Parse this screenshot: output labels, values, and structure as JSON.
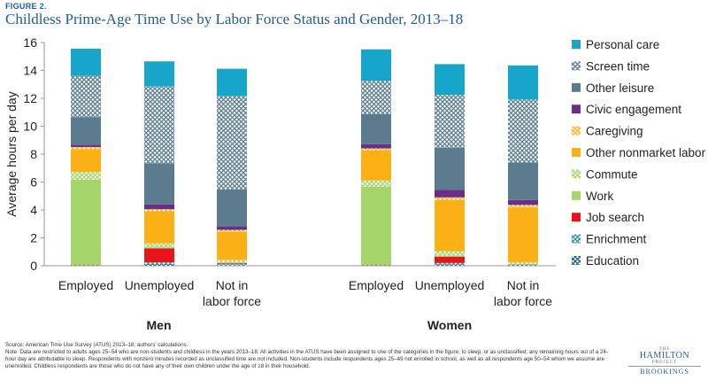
{
  "figure_label": "FIGURE 2.",
  "title": "Childless Prime-Age Time Use by Labor Force Status and Gender, 2013–18",
  "notes": {
    "source": "Source: American Time Use Survey (ATUS) 2013–18; authors’ calculations.",
    "note": "Note: Data are restricted to adults ages 25–54 who are non-students and childless in the years 2013–18. All activities in the ATUS have been assigned to one of the categories in the figure, to sleep, or as unclassified; any remaining hours out of a 24-hour day are attributable to sleep. Respondents with nonzero minutes recorded as unclassified time are not included. Non-students include respondents ages 25–49 not enrolled in school, as well as all respondents age 50–54 whom we assume are unenrolled. Childless respondents are those who do not have any of their own children under the age of 18 in their household."
  },
  "logo": {
    "the": "THE",
    "name": "HAMILTON",
    "project": "PROJECT",
    "org": "BROOKINGS"
  },
  "chart_data": {
    "type": "bar",
    "stacked": true,
    "ylabel": "Average hours per day",
    "ylim": [
      0,
      16
    ],
    "yticks": [
      0,
      2,
      4,
      6,
      8,
      10,
      12,
      14,
      16
    ],
    "grid": false,
    "legend_position": "right",
    "groups": [
      "Men",
      "Women"
    ],
    "categories": [
      "Employed",
      "Unemployed",
      "Not in labor force",
      "Employed",
      "Unemployed",
      "Not in labor force"
    ],
    "category_lines": [
      [
        "Employed"
      ],
      [
        "Unemployed"
      ],
      [
        "Not in",
        "labor force"
      ],
      [
        "Employed"
      ],
      [
        "Unemployed"
      ],
      [
        "Not in",
        "labor force"
      ]
    ],
    "series": [
      {
        "name": "Education",
        "color": "#1a5f7a",
        "pattern": "cross",
        "values": [
          0.02,
          0.15,
          0.05,
          0.02,
          0.1,
          0.02
        ]
      },
      {
        "name": "Enrichment",
        "color": "#2e8b9e",
        "pattern": "cross",
        "values": [
          0.02,
          0.1,
          0.1,
          0.02,
          0.1,
          0.05
        ]
      },
      {
        "name": "Job search",
        "color": "#e8141c",
        "pattern": "solid",
        "values": [
          0.02,
          1.0,
          0.05,
          0.02,
          0.45,
          0.02
        ]
      },
      {
        "name": "Work",
        "color": "#a5d46a",
        "pattern": "solid",
        "values": [
          6.1,
          0.05,
          0.02,
          5.6,
          0.05,
          0.02
        ]
      },
      {
        "name": "Commute",
        "color": "#a5d46a",
        "pattern": "cross",
        "values": [
          0.55,
          0.3,
          0.2,
          0.45,
          0.35,
          0.15
        ]
      },
      {
        "name": "Other nonmarket labor",
        "color": "#fbb116",
        "pattern": "solid",
        "values": [
          1.65,
          2.3,
          2.0,
          2.15,
          3.65,
          3.9
        ]
      },
      {
        "name": "Caregiving",
        "color": "#fbb116",
        "pattern": "cross",
        "values": [
          0.15,
          0.15,
          0.15,
          0.15,
          0.2,
          0.2
        ]
      },
      {
        "name": "Civic engagement",
        "color": "#6b2d87",
        "pattern": "solid",
        "values": [
          0.15,
          0.35,
          0.25,
          0.3,
          0.55,
          0.35
        ]
      },
      {
        "name": "Other leisure",
        "color": "#5b7c8f",
        "pattern": "solid",
        "values": [
          2.0,
          2.95,
          2.65,
          2.15,
          3.0,
          2.7
        ]
      },
      {
        "name": "Screen time",
        "color": "#5b7c8f",
        "pattern": "cross",
        "values": [
          2.95,
          5.5,
          6.7,
          2.4,
          3.8,
          4.5
        ]
      },
      {
        "name": "Personal care",
        "color": "#17a6c9",
        "pattern": "solid",
        "values": [
          1.95,
          1.8,
          1.95,
          2.25,
          2.2,
          2.45
        ]
      }
    ]
  }
}
